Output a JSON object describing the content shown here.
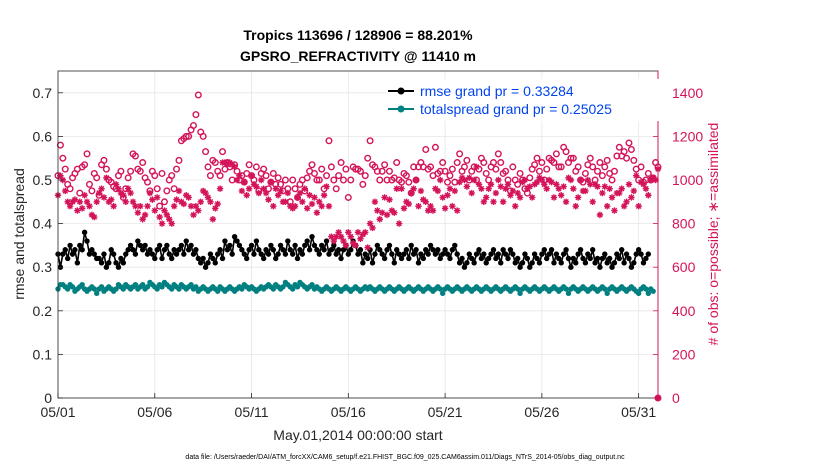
{
  "chart_data": {
    "type": "line",
    "title": "Tropics 113696 / 128906 = 88.201%",
    "subtitle": "GPSRO_REFRACTIVITY @ 11410 m",
    "xlabel": "May.01,2014 00:00:00 start",
    "ylabel": "rmse and totalspread",
    "ylabel_right": "# of obs: o=possible; ∗=assimilated",
    "xlim": [
      0,
      31
    ],
    "ylim": [
      0,
      0.75
    ],
    "ylim_right": [
      0,
      1500
    ],
    "x_tick_values": [
      0,
      5,
      10,
      15,
      20,
      25,
      30
    ],
    "x_tick_labels": [
      "05/01",
      "05/06",
      "05/11",
      "05/16",
      "05/21",
      "05/26",
      "05/31"
    ],
    "y_ticks": [
      "0",
      "0.1",
      "0.2",
      "0.3",
      "0.4",
      "0.5",
      "0.6",
      "0.7"
    ],
    "y_ticks_right": [
      "0",
      "200",
      "400",
      "600",
      "800",
      "1000",
      "1200",
      "1400"
    ],
    "grid": true,
    "legend_position": "top-right",
    "x_step_days": 0.125,
    "series": [
      {
        "name": "rmse grand pr = 0.33284",
        "axis": "left",
        "color": "#000000",
        "marker": "filled-circle",
        "values": [
          0.33,
          0.3,
          0.33,
          0.34,
          0.32,
          0.35,
          0.33,
          0.34,
          0.31,
          0.35,
          0.34,
          0.38,
          0.36,
          0.33,
          0.34,
          0.33,
          0.32,
          0.32,
          0.31,
          0.33,
          0.3,
          0.31,
          0.34,
          0.33,
          0.31,
          0.3,
          0.32,
          0.31,
          0.33,
          0.34,
          0.35,
          0.34,
          0.33,
          0.36,
          0.35,
          0.34,
          0.35,
          0.33,
          0.34,
          0.33,
          0.32,
          0.34,
          0.35,
          0.32,
          0.34,
          0.35,
          0.33,
          0.32,
          0.34,
          0.33,
          0.34,
          0.35,
          0.33,
          0.36,
          0.34,
          0.35,
          0.33,
          0.34,
          0.32,
          0.31,
          0.32,
          0.3,
          0.31,
          0.33,
          0.32,
          0.31,
          0.33,
          0.34,
          0.32,
          0.36,
          0.34,
          0.35,
          0.33,
          0.37,
          0.36,
          0.35,
          0.34,
          0.33,
          0.32,
          0.34,
          0.35,
          0.33,
          0.36,
          0.34,
          0.33,
          0.32,
          0.34,
          0.33,
          0.35,
          0.34,
          0.32,
          0.33,
          0.35,
          0.34,
          0.33,
          0.36,
          0.34,
          0.33,
          0.35,
          0.32,
          0.34,
          0.33,
          0.35,
          0.36,
          0.34,
          0.37,
          0.35,
          0.34,
          0.33,
          0.35,
          0.34,
          0.36,
          0.33,
          0.34,
          0.35,
          0.33,
          0.34,
          0.32,
          0.34,
          0.35,
          0.33,
          0.34,
          0.36,
          0.35,
          0.33,
          0.34,
          0.31,
          0.33,
          0.32,
          0.34,
          0.31,
          0.33,
          0.35,
          0.34,
          0.33,
          0.32,
          0.34,
          0.35,
          0.33,
          0.31,
          0.34,
          0.33,
          0.32,
          0.33,
          0.34,
          0.32,
          0.35,
          0.33,
          0.34,
          0.31,
          0.33,
          0.32,
          0.34,
          0.33,
          0.35,
          0.34,
          0.33,
          0.34,
          0.32,
          0.33,
          0.34,
          0.33,
          0.32,
          0.34,
          0.35,
          0.33,
          0.31,
          0.32,
          0.3,
          0.31,
          0.33,
          0.32,
          0.31,
          0.33,
          0.34,
          0.32,
          0.33,
          0.31,
          0.32,
          0.33,
          0.34,
          0.32,
          0.33,
          0.31,
          0.34,
          0.33,
          0.32,
          0.34,
          0.33,
          0.31,
          0.32,
          0.3,
          0.31,
          0.33,
          0.32,
          0.3,
          0.31,
          0.33,
          0.32,
          0.31,
          0.33,
          0.34,
          0.32,
          0.33,
          0.34,
          0.31,
          0.33,
          0.32,
          0.31,
          0.33,
          0.34,
          0.32,
          0.3,
          0.32,
          0.31,
          0.33,
          0.34,
          0.32,
          0.31,
          0.33,
          0.32,
          0.34,
          0.31,
          0.32,
          0.3,
          0.32,
          0.33,
          0.31,
          0.32,
          0.3,
          0.31,
          0.33,
          0.32,
          0.34,
          0.31,
          0.33,
          0.32,
          0.3,
          0.31,
          0.33,
          0.34,
          0.33,
          0.31,
          0.32,
          0.33
        ]
      },
      {
        "name": "totalspread grand pr = 0.25025",
        "axis": "left",
        "color": "#008080",
        "marker": "filled-circle",
        "values": [
          0.25,
          0.26,
          0.26,
          0.255,
          0.25,
          0.26,
          0.255,
          0.245,
          0.25,
          0.255,
          0.26,
          0.25,
          0.245,
          0.25,
          0.255,
          0.25,
          0.24,
          0.25,
          0.255,
          0.245,
          0.25,
          0.255,
          0.25,
          0.245,
          0.25,
          0.26,
          0.255,
          0.25,
          0.26,
          0.255,
          0.25,
          0.255,
          0.26,
          0.25,
          0.255,
          0.26,
          0.25,
          0.255,
          0.265,
          0.26,
          0.255,
          0.25,
          0.26,
          0.255,
          0.265,
          0.26,
          0.255,
          0.25,
          0.26,
          0.255,
          0.25,
          0.26,
          0.255,
          0.25,
          0.255,
          0.26,
          0.25,
          0.255,
          0.245,
          0.25,
          0.255,
          0.25,
          0.245,
          0.25,
          0.255,
          0.25,
          0.245,
          0.255,
          0.25,
          0.245,
          0.25,
          0.255,
          0.25,
          0.245,
          0.25,
          0.255,
          0.25,
          0.26,
          0.255,
          0.25,
          0.255,
          0.25,
          0.245,
          0.25,
          0.255,
          0.25,
          0.255,
          0.26,
          0.255,
          0.25,
          0.26,
          0.255,
          0.25,
          0.255,
          0.265,
          0.26,
          0.255,
          0.25,
          0.26,
          0.255,
          0.265,
          0.26,
          0.255,
          0.25,
          0.255,
          0.26,
          0.25,
          0.255,
          0.25,
          0.245,
          0.25,
          0.255,
          0.25,
          0.245,
          0.25,
          0.255,
          0.25,
          0.245,
          0.25,
          0.255,
          0.25,
          0.245,
          0.25,
          0.255,
          0.25,
          0.245,
          0.25,
          0.255,
          0.25,
          0.255,
          0.25,
          0.245,
          0.25,
          0.255,
          0.25,
          0.245,
          0.25,
          0.255,
          0.25,
          0.245,
          0.25,
          0.255,
          0.25,
          0.245,
          0.25,
          0.255,
          0.25,
          0.245,
          0.25,
          0.255,
          0.25,
          0.245,
          0.25,
          0.255,
          0.25,
          0.245,
          0.25,
          0.255,
          0.25,
          0.24,
          0.25,
          0.255,
          0.25,
          0.245,
          0.25,
          0.255,
          0.25,
          0.245,
          0.25,
          0.255,
          0.25,
          0.245,
          0.25,
          0.255,
          0.25,
          0.245,
          0.25,
          0.255,
          0.25,
          0.245,
          0.25,
          0.255,
          0.25,
          0.245,
          0.25,
          0.255,
          0.25,
          0.245,
          0.25,
          0.255,
          0.25,
          0.24,
          0.25,
          0.255,
          0.25,
          0.245,
          0.25,
          0.255,
          0.25,
          0.245,
          0.25,
          0.255,
          0.25,
          0.245,
          0.25,
          0.255,
          0.25,
          0.245,
          0.25,
          0.255,
          0.25,
          0.24,
          0.25,
          0.255,
          0.25,
          0.245,
          0.25,
          0.255,
          0.25,
          0.245,
          0.25,
          0.255,
          0.25,
          0.245,
          0.25,
          0.255,
          0.25,
          0.24,
          0.25,
          0.255,
          0.25,
          0.245,
          0.25,
          0.255,
          0.25,
          0.245,
          0.25,
          0.255,
          0.25,
          0.245,
          0.24,
          0.25,
          0.255,
          0.25,
          0.24,
          0.25,
          0.245
        ]
      },
      {
        "name": "possible",
        "axis": "right",
        "color": "#d4145a",
        "marker": "open-circle",
        "values": [
          1020,
          1160,
          1100,
          1050,
          980,
          960,
          1010,
          1030,
          1050,
          940,
          1060,
          1070,
          1120,
          980,
          950,
          1030,
          1010,
          930,
          1070,
          1090,
          1050,
          1000,
          990,
          970,
          960,
          1020,
          1040,
          920,
          960,
          1010,
          1040,
          1120,
          1110,
          1050,
          1040,
          1080,
          1010,
          990,
          950,
          1040,
          1020,
          960,
          880,
          1030,
          900,
          950,
          1000,
          1020,
          960,
          1050,
          1090,
          1180,
          1190,
          1200,
          1200,
          1230,
          1250,
          1300,
          1390,
          1220,
          1200,
          1130,
          1060,
          1020,
          1090,
          1080,
          1040,
          1020,
          1130,
          1050,
          1080,
          1060,
          1000,
          1070,
          1040,
          1000,
          1020,
          990,
          1030,
          1070,
          1020,
          1000,
          1060,
          950,
          1030,
          1050,
          1020,
          960,
          990,
          1030,
          980,
          1010,
          980,
          950,
          1000,
          960,
          900,
          1000,
          960,
          920,
          980,
          1000,
          950,
          1010,
          1040,
          1070,
          1030,
          1000,
          1000,
          1050,
          960,
          1020,
          1180,
          1060,
          1000,
          960,
          1020,
          1080,
          1000,
          1050,
          920,
          1000,
          1060,
          1050,
          1050,
          1040,
          980,
          1020,
          1100,
          1180,
          1070,
          1060,
          1040,
          1000,
          1040,
          1070,
          1000,
          1040,
          1000,
          1010,
          1080,
          1000,
          990,
          1030,
          1020,
          990,
          940,
          1060,
          1000,
          1060,
          1080,
          1060,
          1140,
          1050,
          1060,
          1020,
          1150,
          1030,
          1040,
          1080,
          1040,
          990,
          1020,
          1050,
          990,
          1080,
          1120,
          1040,
          1060,
          1090,
          1000,
          1040,
          1060,
          1000,
          1050,
          1100,
          1080,
          1030,
          1000,
          1060,
          1080,
          1050,
          1120,
          1080,
          1030,
          1040,
          1000,
          950,
          1060,
          1000,
          980,
          1030,
          1000,
          960,
          940,
          1010,
          1050,
          1070,
          1100,
          1040,
          1080,
          1000,
          1050,
          1100,
          1090,
          1080,
          1120,
          1060,
          1060,
          1150,
          1130,
          1080,
          1100,
          1100,
          1040,
          1060,
          1000,
          990,
          1030,
          1070,
          1100,
          1060,
          1000,
          1040,
          1080,
          1020,
          1060,
          1090,
          1030,
          1000,
          1040,
          1110,
          1150,
          1110,
          1130,
          1100,
          1170,
          1140,
          1090,
          1050,
          1000,
          1060,
          990,
          1000,
          1030,
          1000,
          1010,
          1080,
          1060,
          1040,
          1020,
          1000
        ]
      },
      {
        "name": "assimilated",
        "axis": "right",
        "color": "#d4145a",
        "marker": "asterisk",
        "values": [
          930,
          1020,
          1000,
          950,
          900,
          880,
          900,
          910,
          860,
          900,
          870,
          930,
          900,
          880,
          840,
          830,
          900,
          940,
          960,
          920,
          1010,
          900,
          910,
          880,
          980,
          960,
          940,
          930,
          900,
          960,
          940,
          900,
          880,
          850,
          880,
          820,
          840,
          880,
          940,
          910,
          860,
          920,
          830,
          800,
          860,
          840,
          820,
          800,
          880,
          910,
          950,
          900,
          890,
          930,
          920,
          880,
          840,
          880,
          860,
          900,
          950,
          940,
          920,
          900,
          820,
          870,
          890,
          960,
          1080,
          1080,
          1070,
          1080,
          1070,
          1060,
          1000,
          1020,
          950,
          990,
          930,
          960,
          1020,
          980,
          970,
          940,
          1000,
          960,
          940,
          910,
          990,
          880,
          960,
          930,
          950,
          900,
          900,
          940,
          880,
          870,
          880,
          920,
          940,
          900,
          960,
          870,
          930,
          890,
          920,
          850,
          900,
          880,
          930,
          970,
          880,
          740,
          720,
          740,
          760,
          740,
          720,
          700,
          760,
          740,
          710,
          700,
          760,
          730,
          750,
          760,
          690,
          800,
          780,
          900,
          860,
          820,
          850,
          920,
          840,
          910,
          860,
          850,
          960,
          800,
          960,
          870,
          900,
          890,
          940,
          960,
          1000,
          880,
          950,
          910,
          900,
          860,
          880,
          860,
          960,
          950,
          1000,
          920,
          870,
          930,
          960,
          880,
          950,
          860,
          990,
          1010,
          1000,
          970,
          1010,
          940,
          1000,
          1060,
          980,
          960,
          900,
          920,
          960,
          980,
          900,
          940,
          1000,
          970,
          900,
          960,
          980,
          930,
          950,
          880,
          940,
          920,
          990,
          1000,
          960,
          970,
          920,
          980,
          990,
          1010,
          1000,
          980,
          960,
          1000,
          990,
          920,
          980,
          960,
          930,
          970,
          900,
          1010,
          1000,
          960,
          880,
          920,
          1000,
          950,
          950,
          1000,
          980,
          900,
          980,
          970,
          840,
          940,
          970,
          880,
          960,
          920,
          860,
          940,
          940,
          960,
          880,
          900,
          980,
          920,
          950,
          1020,
          880,
          990,
          980,
          960,
          930,
          1000,
          1010,
          1000,
          1050,
          900,
          960,
          940,
          1000,
          920,
          960,
          1050,
          1000,
          990,
          950,
          980,
          900,
          960,
          940
        ]
      }
    ],
    "footnote": "data file: /Users/raeder/DAI/ATM_forcXX/CAM6_setup/f.e21.FHIST_BGC.f09_025.CAM6assim.011/Diags_NTrS_2014-05/obs_diag_output.nc"
  }
}
